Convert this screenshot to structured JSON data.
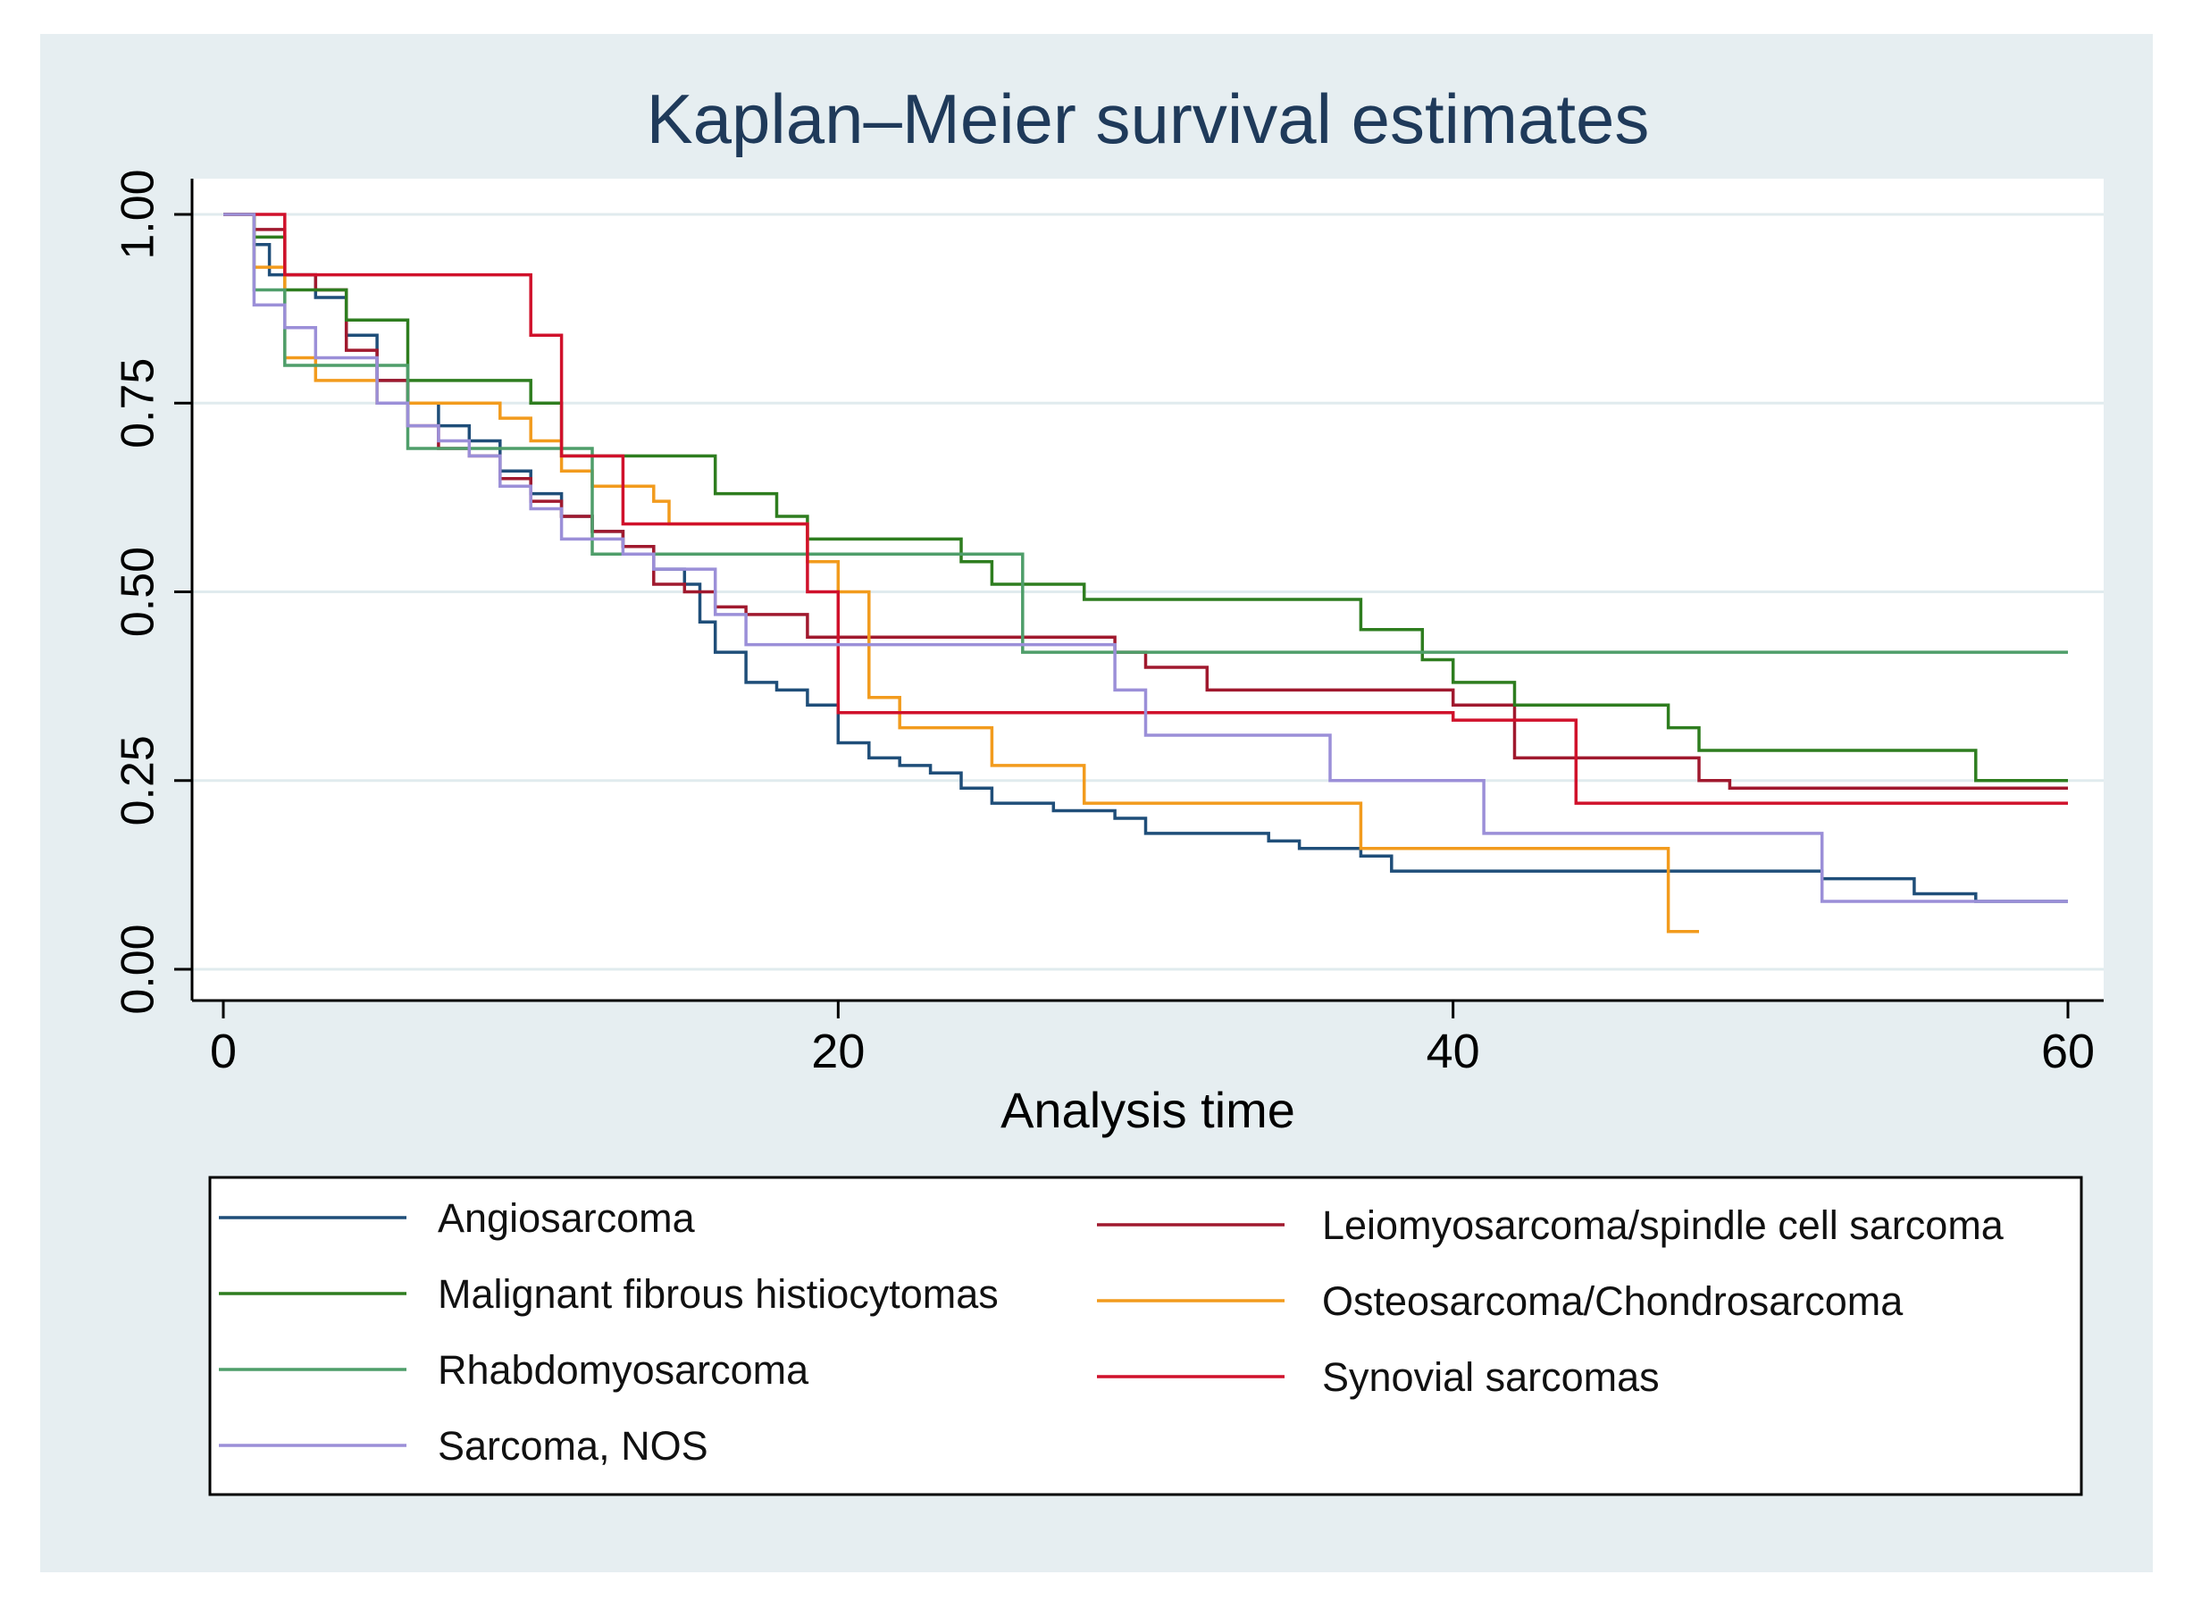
{
  "chart_data": {
    "type": "line",
    "subtype": "kaplan-meier-step",
    "title": "Kaplan–Meier survival estimates",
    "xlabel": "Analysis time",
    "ylabel": "",
    "xlim": [
      0,
      60
    ],
    "ylim": [
      0,
      1
    ],
    "xticks": [
      "0",
      "20",
      "40",
      "60"
    ],
    "yticks": [
      "0.00",
      "0.25",
      "0.50",
      "0.75",
      "1.00"
    ],
    "grid": "horizontal",
    "legend_position": "bottom",
    "series": [
      {
        "name": "Angiosarcoma",
        "color": "#1f4e79",
        "points": [
          [
            0,
            1
          ],
          [
            1,
            0.96
          ],
          [
            1.5,
            0.92
          ],
          [
            3,
            0.89
          ],
          [
            4,
            0.84
          ],
          [
            5,
            0.78
          ],
          [
            6,
            0.75
          ],
          [
            7,
            0.72
          ],
          [
            8,
            0.7
          ],
          [
            9,
            0.66
          ],
          [
            10,
            0.63
          ],
          [
            11,
            0.6
          ],
          [
            12,
            0.58
          ],
          [
            13,
            0.56
          ],
          [
            14,
            0.53
          ],
          [
            15,
            0.51
          ],
          [
            15.5,
            0.46
          ],
          [
            16,
            0.42
          ],
          [
            17,
            0.38
          ],
          [
            18,
            0.37
          ],
          [
            19,
            0.35
          ],
          [
            20,
            0.3
          ],
          [
            21,
            0.28
          ],
          [
            22,
            0.27
          ],
          [
            23,
            0.26
          ],
          [
            24,
            0.24
          ],
          [
            25,
            0.22
          ],
          [
            27,
            0.21
          ],
          [
            29,
            0.2
          ],
          [
            30,
            0.18
          ],
          [
            32,
            0.18
          ],
          [
            34,
            0.17
          ],
          [
            35,
            0.16
          ],
          [
            36,
            0.16
          ],
          [
            37,
            0.15
          ],
          [
            38,
            0.13
          ],
          [
            40,
            0.13
          ],
          [
            52,
            0.12
          ],
          [
            55,
            0.1
          ],
          [
            57,
            0.09
          ],
          [
            60,
            0.09
          ]
        ]
      },
      {
        "name": "Leiomyosarcoma/spindle cell sarcoma",
        "color": "#a0192e",
        "points": [
          [
            0,
            1
          ],
          [
            1,
            0.98
          ],
          [
            2,
            0.92
          ],
          [
            3,
            0.9
          ],
          [
            4,
            0.82
          ],
          [
            5,
            0.78
          ],
          [
            6,
            0.72
          ],
          [
            7,
            0.69
          ],
          [
            8,
            0.68
          ],
          [
            9,
            0.65
          ],
          [
            10,
            0.62
          ],
          [
            11,
            0.6
          ],
          [
            12,
            0.58
          ],
          [
            13,
            0.56
          ],
          [
            14,
            0.51
          ],
          [
            15,
            0.5
          ],
          [
            16,
            0.48
          ],
          [
            17,
            0.47
          ],
          [
            19,
            0.44
          ],
          [
            29,
            0.42
          ],
          [
            30,
            0.4
          ],
          [
            32,
            0.37
          ],
          [
            40,
            0.35
          ],
          [
            42,
            0.28
          ],
          [
            48,
            0.25
          ],
          [
            49,
            0.24
          ],
          [
            60,
            0.24
          ]
        ]
      },
      {
        "name": "Malignant fibrous histiocytomas",
        "color": "#2e7d1f",
        "points": [
          [
            0,
            1
          ],
          [
            1,
            0.97
          ],
          [
            2,
            0.9
          ],
          [
            4,
            0.86
          ],
          [
            6,
            0.78
          ],
          [
            8,
            0.78
          ],
          [
            10,
            0.75
          ],
          [
            11,
            0.68
          ],
          [
            16,
            0.63
          ],
          [
            18,
            0.6
          ],
          [
            19,
            0.57
          ],
          [
            24,
            0.54
          ],
          [
            25,
            0.51
          ],
          [
            28,
            0.49
          ],
          [
            37,
            0.45
          ],
          [
            39,
            0.41
          ],
          [
            40,
            0.38
          ],
          [
            42,
            0.35
          ],
          [
            47,
            0.32
          ],
          [
            48,
            0.29
          ],
          [
            57,
            0.25
          ],
          [
            60,
            0.25
          ]
        ]
      },
      {
        "name": "Osteosarcoma/Chondrosarcoma",
        "color": "#f29b1d",
        "points": [
          [
            0,
            1
          ],
          [
            1,
            0.93
          ],
          [
            2,
            0.81
          ],
          [
            3,
            0.78
          ],
          [
            5,
            0.75
          ],
          [
            6,
            0.75
          ],
          [
            8,
            0.75
          ],
          [
            9,
            0.73
          ],
          [
            10,
            0.7
          ],
          [
            11,
            0.66
          ],
          [
            12,
            0.64
          ],
          [
            14,
            0.62
          ],
          [
            14.5,
            0.59
          ],
          [
            19,
            0.54
          ],
          [
            20,
            0.5
          ],
          [
            21,
            0.36
          ],
          [
            22,
            0.32
          ],
          [
            25,
            0.27
          ],
          [
            28,
            0.22
          ],
          [
            37,
            0.16
          ],
          [
            47,
            0.05
          ],
          [
            48,
            0.05
          ]
        ]
      },
      {
        "name": "Rhabdomyosarcoma",
        "color": "#4f9e6a",
        "points": [
          [
            0,
            1
          ],
          [
            1,
            0.9
          ],
          [
            2,
            0.8
          ],
          [
            4,
            0.8
          ],
          [
            6,
            0.69
          ],
          [
            8,
            0.69
          ],
          [
            12,
            0.55
          ],
          [
            26,
            0.42
          ],
          [
            60,
            0.42
          ]
        ]
      },
      {
        "name": "Synovial sarcomas",
        "color": "#d0112b",
        "points": [
          [
            0,
            1
          ],
          [
            2,
            0.92
          ],
          [
            10,
            0.84
          ],
          [
            11,
            0.68
          ],
          [
            13,
            0.59
          ],
          [
            19,
            0.5
          ],
          [
            20,
            0.34
          ],
          [
            40,
            0.33
          ],
          [
            42,
            0.33
          ],
          [
            44,
            0.22
          ],
          [
            60,
            0.22
          ]
        ]
      },
      {
        "name": "Sarcoma, NOS",
        "color": "#9b8fd8",
        "points": [
          [
            0,
            1
          ],
          [
            1,
            0.88
          ],
          [
            2,
            0.85
          ],
          [
            3,
            0.81
          ],
          [
            5,
            0.75
          ],
          [
            6,
            0.72
          ],
          [
            7,
            0.7
          ],
          [
            8,
            0.68
          ],
          [
            9,
            0.64
          ],
          [
            10,
            0.61
          ],
          [
            11,
            0.57
          ],
          [
            13,
            0.55
          ],
          [
            14,
            0.53
          ],
          [
            16,
            0.47
          ],
          [
            17,
            0.43
          ],
          [
            29,
            0.37
          ],
          [
            30,
            0.31
          ],
          [
            36,
            0.25
          ],
          [
            41,
            0.18
          ],
          [
            52,
            0.09
          ],
          [
            60,
            0.09
          ]
        ]
      }
    ],
    "legend": [
      {
        "name": "Angiosarcoma",
        "color": "#1f4e79"
      },
      {
        "name": "Leiomyosarcoma/spindle cell sarcoma",
        "color": "#a0192e"
      },
      {
        "name": "Malignant fibrous histiocytomas",
        "color": "#2e7d1f"
      },
      {
        "name": "Osteosarcoma/Chondrosarcoma",
        "color": "#f29b1d"
      },
      {
        "name": "Rhabdomyosarcoma",
        "color": "#4f9e6a"
      },
      {
        "name": "Synovial sarcomas",
        "color": "#d0112b"
      },
      {
        "name": "Sarcoma, NOS",
        "color": "#9b8fd8"
      }
    ]
  },
  "colors": {
    "background": "#e6eef1",
    "plot_background": "#ffffff",
    "grid": "#e0ebee",
    "axis": "#000000",
    "title": "#1f3a5a"
  }
}
